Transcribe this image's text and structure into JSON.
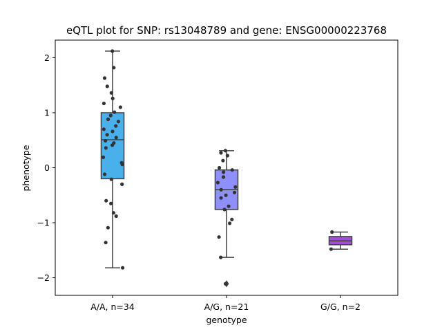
{
  "chart_data": {
    "type": "box",
    "title": "eQTL plot for SNP: rs13048789 and gene: ENSG00000223768",
    "xlabel": "genotype",
    "ylabel": "phenotype",
    "ylim": [
      -2.32,
      2.32
    ],
    "yticks": [
      -2,
      -1,
      0,
      1,
      2
    ],
    "grid": false,
    "categories": [
      "A/A, n=34",
      "A/G, n=21",
      "G/G, n=2"
    ],
    "boxes": [
      {
        "category": "A/A, n=34",
        "color": "#4ab0ec",
        "whisker_low": -1.82,
        "q1": -0.2,
        "median": 0.51,
        "q3": 1.0,
        "whisker_high": 2.12,
        "outliers": [],
        "points": [
          2.12,
          1.82,
          1.63,
          1.48,
          1.36,
          1.26,
          1.17,
          1.1,
          1.01,
          0.95,
          0.88,
          0.84,
          0.76,
          0.7,
          0.66,
          0.6,
          0.55,
          0.49,
          0.45,
          0.41,
          0.36,
          0.19,
          0.09,
          0.06,
          -0.12,
          -0.21,
          -0.3,
          -0.6,
          -0.65,
          -0.82,
          -0.88,
          -1.09,
          -1.36,
          -1.82
        ]
      },
      {
        "category": "A/G, n=21",
        "color": "#8f8ffb",
        "whisker_low": -1.63,
        "q1": -0.76,
        "median": -0.4,
        "q3": -0.04,
        "whisker_high": 0.31,
        "outliers": [
          -2.11
        ],
        "points": [
          0.31,
          0.27,
          0.22,
          0.13,
          0.0,
          -0.04,
          -0.08,
          -0.17,
          -0.27,
          -0.35,
          -0.4,
          -0.45,
          -0.5,
          -0.55,
          -0.7,
          -0.76,
          -0.94,
          -1.01,
          -1.26,
          -1.63,
          -2.11
        ]
      },
      {
        "category": "G/G, n=2",
        "color": "#a24fd8",
        "whisker_low": -1.48,
        "q1": -1.4,
        "median": -1.33,
        "q3": -1.25,
        "whisker_high": -1.17,
        "outliers": [],
        "points": [
          -1.17,
          -1.48
        ]
      }
    ]
  }
}
